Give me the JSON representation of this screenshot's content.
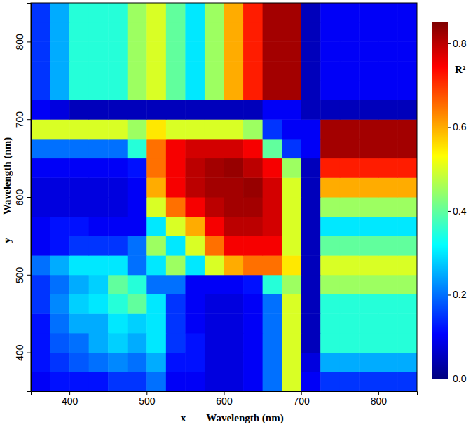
{
  "chart_data": {
    "type": "heatmap",
    "xlabel": "Wavelength (nm)",
    "ylabel": "Wavelength (nm)",
    "axis_letters": {
      "x": "x",
      "y": "y"
    },
    "x": [
      350,
      375,
      400,
      425,
      450,
      475,
      500,
      525,
      550,
      575,
      600,
      625,
      650,
      675,
      700,
      725,
      750,
      775,
      800,
      825
    ],
    "y": [
      350,
      375,
      400,
      425,
      450,
      475,
      500,
      525,
      550,
      575,
      600,
      625,
      650,
      675,
      700,
      725,
      750,
      775,
      800,
      825
    ],
    "xlim": [
      350,
      850
    ],
    "ylim": [
      350,
      850
    ],
    "xticks": [
      400,
      500,
      600,
      700,
      800
    ],
    "yticks": [
      400,
      500,
      600,
      700,
      800
    ],
    "z": [
      [
        0.1,
        0.12,
        0.12,
        0.12,
        0.15,
        0.15,
        0.2,
        0.1,
        0.1,
        0.08,
        0.08,
        0.1,
        0.2,
        0.5,
        0.1,
        0.15,
        0.15,
        0.15,
        0.15,
        0.15
      ],
      [
        0.12,
        0.15,
        0.18,
        0.2,
        0.22,
        0.2,
        0.25,
        0.12,
        0.12,
        0.08,
        0.08,
        0.1,
        0.2,
        0.5,
        0.08,
        0.25,
        0.25,
        0.25,
        0.25,
        0.25
      ],
      [
        0.12,
        0.18,
        0.2,
        0.25,
        0.28,
        0.25,
        0.3,
        0.15,
        0.12,
        0.08,
        0.08,
        0.1,
        0.2,
        0.5,
        0.05,
        0.35,
        0.35,
        0.35,
        0.35,
        0.35
      ],
      [
        0.12,
        0.2,
        0.25,
        0.25,
        0.3,
        0.28,
        0.3,
        0.15,
        0.1,
        0.08,
        0.08,
        0.1,
        0.2,
        0.5,
        0.05,
        0.35,
        0.35,
        0.35,
        0.35,
        0.35
      ],
      [
        0.15,
        0.22,
        0.28,
        0.3,
        0.35,
        0.4,
        0.3,
        0.15,
        0.1,
        0.08,
        0.08,
        0.1,
        0.2,
        0.5,
        0.05,
        0.35,
        0.35,
        0.35,
        0.35,
        0.35
      ],
      [
        0.15,
        0.2,
        0.25,
        0.28,
        0.4,
        0.35,
        0.2,
        0.2,
        0.1,
        0.1,
        0.1,
        0.12,
        0.35,
        0.45,
        0.05,
        0.45,
        0.45,
        0.45,
        0.45,
        0.45
      ],
      [
        0.2,
        0.25,
        0.3,
        0.3,
        0.3,
        0.2,
        0.3,
        0.45,
        0.3,
        0.5,
        0.6,
        0.65,
        0.65,
        0.55,
        0.05,
        0.5,
        0.5,
        0.5,
        0.5,
        0.5
      ],
      [
        0.1,
        0.12,
        0.15,
        0.15,
        0.15,
        0.2,
        0.45,
        0.3,
        0.5,
        0.65,
        0.75,
        0.75,
        0.75,
        0.5,
        0.05,
        0.4,
        0.4,
        0.4,
        0.4,
        0.4
      ],
      [
        0.1,
        0.12,
        0.12,
        0.1,
        0.1,
        0.1,
        0.3,
        0.5,
        0.6,
        0.75,
        0.8,
        0.8,
        0.78,
        0.5,
        0.05,
        0.3,
        0.3,
        0.3,
        0.3,
        0.3
      ],
      [
        0.08,
        0.08,
        0.08,
        0.08,
        0.08,
        0.1,
        0.5,
        0.65,
        0.75,
        0.8,
        0.82,
        0.82,
        0.78,
        0.5,
        0.05,
        0.45,
        0.45,
        0.45,
        0.45,
        0.45
      ],
      [
        0.08,
        0.08,
        0.08,
        0.08,
        0.08,
        0.1,
        0.6,
        0.75,
        0.8,
        0.82,
        0.82,
        0.83,
        0.78,
        0.5,
        0.05,
        0.6,
        0.6,
        0.6,
        0.6,
        0.6
      ],
      [
        0.1,
        0.1,
        0.1,
        0.1,
        0.1,
        0.12,
        0.65,
        0.75,
        0.8,
        0.82,
        0.83,
        0.8,
        0.75,
        0.45,
        0.05,
        0.72,
        0.72,
        0.72,
        0.72,
        0.72
      ],
      [
        0.2,
        0.2,
        0.2,
        0.2,
        0.2,
        0.35,
        0.65,
        0.75,
        0.78,
        0.78,
        0.78,
        0.75,
        0.4,
        0.15,
        0.1,
        0.82,
        0.82,
        0.82,
        0.82,
        0.82
      ],
      [
        0.5,
        0.5,
        0.5,
        0.5,
        0.5,
        0.45,
        0.55,
        0.5,
        0.5,
        0.5,
        0.5,
        0.45,
        0.15,
        0.1,
        0.1,
        0.82,
        0.82,
        0.82,
        0.82,
        0.82
      ],
      [
        0.1,
        0.08,
        0.05,
        0.05,
        0.05,
        0.05,
        0.05,
        0.05,
        0.05,
        0.05,
        0.05,
        0.05,
        0.1,
        0.1,
        0.05,
        0.05,
        0.05,
        0.05,
        0.05,
        0.05
      ],
      [
        0.15,
        0.25,
        0.35,
        0.35,
        0.35,
        0.45,
        0.5,
        0.4,
        0.3,
        0.45,
        0.6,
        0.72,
        0.82,
        0.82,
        0.05,
        0.1,
        0.1,
        0.1,
        0.1,
        0.1
      ],
      [
        0.15,
        0.25,
        0.35,
        0.35,
        0.35,
        0.45,
        0.5,
        0.4,
        0.3,
        0.45,
        0.6,
        0.72,
        0.82,
        0.82,
        0.05,
        0.1,
        0.1,
        0.1,
        0.1,
        0.1
      ],
      [
        0.15,
        0.25,
        0.35,
        0.35,
        0.35,
        0.45,
        0.5,
        0.4,
        0.3,
        0.45,
        0.6,
        0.72,
        0.82,
        0.82,
        0.05,
        0.1,
        0.1,
        0.1,
        0.1,
        0.1
      ],
      [
        0.15,
        0.25,
        0.35,
        0.35,
        0.35,
        0.45,
        0.5,
        0.4,
        0.3,
        0.45,
        0.6,
        0.72,
        0.82,
        0.82,
        0.05,
        0.1,
        0.1,
        0.1,
        0.1,
        0.1
      ],
      [
        0.15,
        0.25,
        0.35,
        0.35,
        0.35,
        0.45,
        0.5,
        0.4,
        0.3,
        0.45,
        0.6,
        0.72,
        0.82,
        0.82,
        0.05,
        0.1,
        0.1,
        0.1,
        0.1,
        0.1
      ]
    ],
    "colorbar": {
      "label": "R²",
      "range": [
        0,
        0.85
      ],
      "ticks": [
        {
          "value": 0,
          "label": "0.0"
        },
        {
          "value": 0.2,
          "label": "0.2"
        },
        {
          "value": 0.4,
          "label": "0.4"
        },
        {
          "value": 0.6,
          "label": "0.6"
        },
        {
          "value": 0.8,
          "label": "0.8"
        }
      ],
      "colors": [
        "#00007f",
        "#0000ff",
        "#007fff",
        "#00ffff",
        "#7fff7f",
        "#ffff00",
        "#ff7f00",
        "#ff0000",
        "#7f0000"
      ]
    }
  }
}
